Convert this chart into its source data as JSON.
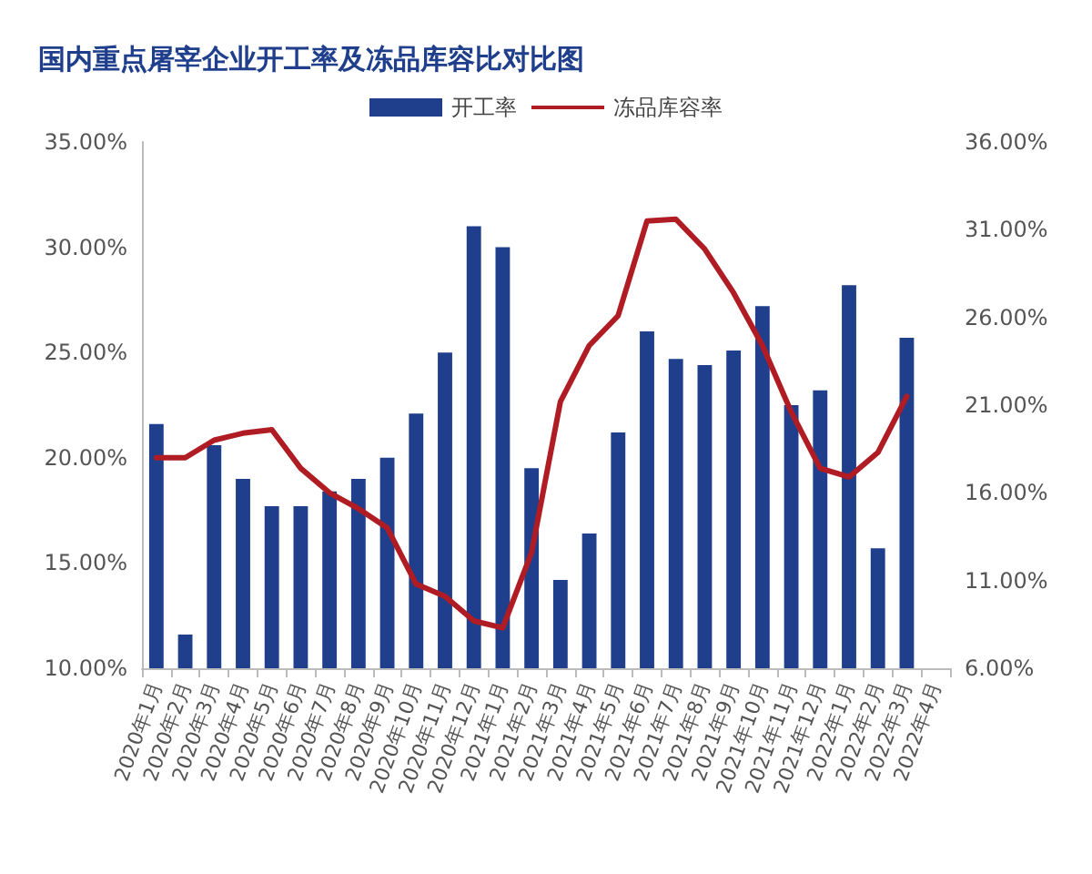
{
  "chart_data": {
    "type": "bar",
    "title": "国内重点屠宰企业开工率及冻品库容比对比图",
    "categories": [
      "2020年1月",
      "2020年2月",
      "2020年3月",
      "2020年4月",
      "2020年5月",
      "2020年6月",
      "2020年7月",
      "2020年8月",
      "2020年9月",
      "2020年10月",
      "2020年11月",
      "2020年12月",
      "2021年1月",
      "2021年2月",
      "2021年3月",
      "2021年4月",
      "2021年5月",
      "2021年6月",
      "2021年7月",
      "2021年8月",
      "2021年9月",
      "2021年10月",
      "2021年11月",
      "2021年12月",
      "2022年1月",
      "2022年2月",
      "2022年3月",
      "2022年4月"
    ],
    "series": [
      {
        "name": "开工率",
        "color": "#1f3f8c",
        "values": [
          21.6,
          11.6,
          20.6,
          19.0,
          17.7,
          17.7,
          18.4,
          19.0,
          20.0,
          22.1,
          25.0,
          31.0,
          30.0,
          19.5,
          14.2,
          16.4,
          21.2,
          26.0,
          24.7,
          24.4,
          25.1,
          27.2,
          22.5,
          23.2,
          28.2,
          15.7,
          25.7,
          null
        ]
      },
      {
        "name": "冻品库容率",
        "type": "line",
        "axis": "y2",
        "color": "#b01c24",
        "values": [
          18.0,
          18.0,
          19.0,
          19.4,
          19.6,
          17.4,
          16.0,
          15.1,
          14.0,
          10.8,
          10.1,
          8.7,
          8.3,
          12.6,
          21.2,
          24.4,
          26.1,
          31.5,
          31.6,
          29.9,
          27.4,
          24.4,
          20.6,
          17.4,
          16.9,
          18.3,
          21.5,
          null
        ]
      }
    ],
    "ylim": [
      10,
      35
    ],
    "yticks": [
      {
        "value": 10,
        "label": "10.00%"
      },
      {
        "value": 15,
        "label": "15.00%"
      },
      {
        "value": 20,
        "label": "20.00%"
      },
      {
        "value": 25,
        "label": "25.00%"
      },
      {
        "value": 30,
        "label": "30.00%"
      },
      {
        "value": 35,
        "label": "35.00%"
      }
    ],
    "y2lim": [
      6,
      36
    ],
    "y2ticks": [
      {
        "value": 6,
        "label": "6.00%"
      },
      {
        "value": 11,
        "label": "11.00%"
      },
      {
        "value": 16,
        "label": "16.00%"
      },
      {
        "value": 21,
        "label": "21.00%"
      },
      {
        "value": 26,
        "label": "26.00%"
      },
      {
        "value": 31,
        "label": "31.00%"
      },
      {
        "value": 36,
        "label": "36.00%"
      }
    ],
    "legend": "top",
    "grid": false,
    "marker": "none",
    "line_style": "solid"
  }
}
